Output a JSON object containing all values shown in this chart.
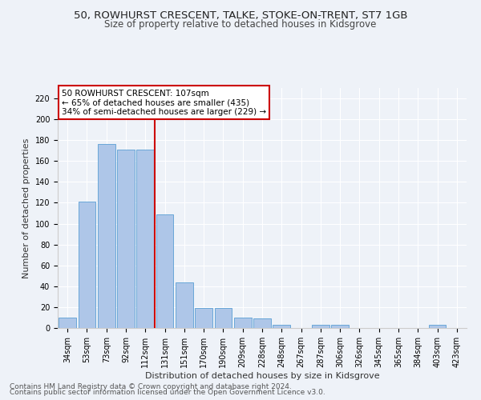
{
  "title1": "50, ROWHURST CRESCENT, TALKE, STOKE-ON-TRENT, ST7 1GB",
  "title2": "Size of property relative to detached houses in Kidsgrove",
  "xlabel": "Distribution of detached houses by size in Kidsgrove",
  "ylabel": "Number of detached properties",
  "bin_labels": [
    "34sqm",
    "53sqm",
    "73sqm",
    "92sqm",
    "112sqm",
    "131sqm",
    "151sqm",
    "170sqm",
    "190sqm",
    "209sqm",
    "228sqm",
    "248sqm",
    "267sqm",
    "287sqm",
    "306sqm",
    "326sqm",
    "345sqm",
    "365sqm",
    "384sqm",
    "403sqm",
    "423sqm"
  ],
  "bar_values": [
    10,
    121,
    176,
    171,
    171,
    109,
    44,
    19,
    19,
    10,
    9,
    3,
    0,
    3,
    3,
    0,
    0,
    0,
    0,
    3,
    0
  ],
  "bar_color": "#aec6e8",
  "bar_edge_color": "#5a9fd4",
  "bar_width": 0.9,
  "vline_x": 4.5,
  "vline_color": "#cc0000",
  "annotation_line1": "50 ROWHURST CRESCENT: 107sqm",
  "annotation_line2": "← 65% of detached houses are smaller (435)",
  "annotation_line3": "34% of semi-detached houses are larger (229) →",
  "annotation_box_color": "#ffffff",
  "annotation_box_edge_color": "#cc0000",
  "ylim": [
    0,
    230
  ],
  "yticks": [
    0,
    20,
    40,
    60,
    80,
    100,
    120,
    140,
    160,
    180,
    200,
    220
  ],
  "footer1": "Contains HM Land Registry data © Crown copyright and database right 2024.",
  "footer2": "Contains public sector information licensed under the Open Government Licence v3.0.",
  "bg_color": "#eef2f8",
  "plot_bg_color": "#eef2f8",
  "grid_color": "#ffffff",
  "title1_fontsize": 9.5,
  "title2_fontsize": 8.5,
  "xlabel_fontsize": 8,
  "ylabel_fontsize": 8,
  "tick_fontsize": 7,
  "annotation_fontsize": 7.5,
  "footer_fontsize": 6.5
}
